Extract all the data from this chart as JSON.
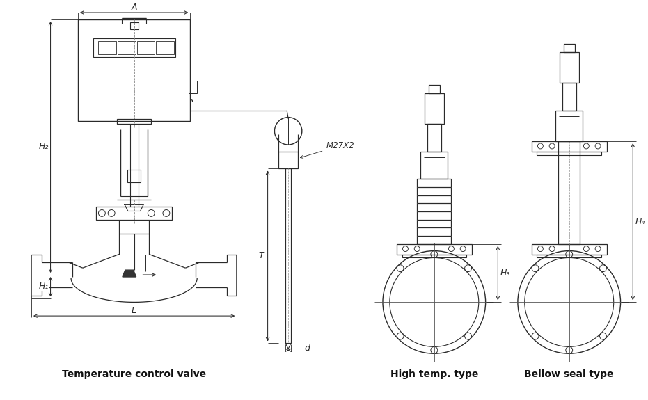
{
  "bg_color": "#ffffff",
  "line_color": "#2a2a2a",
  "labels": {
    "A": "A",
    "H1": "H₁",
    "H2": "H₂",
    "H3": "H₃",
    "H4": "H₄",
    "T": "T",
    "d": "d",
    "L": "L",
    "M27X2": "M27X2",
    "temp_valve": "Temperature control valve",
    "high_temp": "High temp. type",
    "bellow": "Bellow seal type"
  },
  "figsize": [
    9.31,
    5.75
  ],
  "dpi": 100
}
